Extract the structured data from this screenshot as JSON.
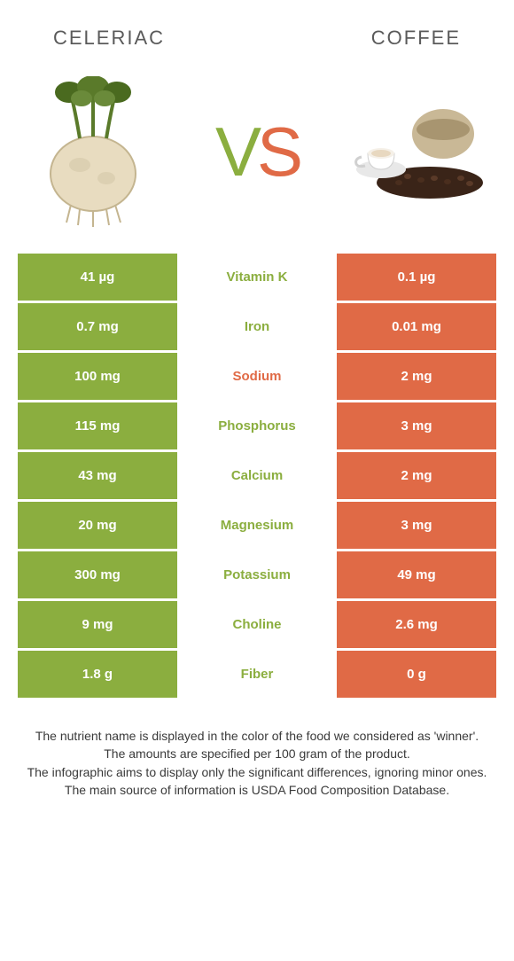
{
  "header": {
    "left_title": "CELERIAC",
    "right_title": "COFFEE"
  },
  "vs": {
    "v": "V",
    "s": "S"
  },
  "colors": {
    "left_bg": "#8bae3f",
    "right_bg": "#e06a46",
    "winner_left_text": "#8bae3f",
    "winner_right_text": "#e06a46",
    "header_text": "#5a5a5a",
    "footer_text": "#3a3a3a",
    "cell_text": "#ffffff",
    "background": "#ffffff"
  },
  "table": {
    "type": "infographic-comparison-table",
    "rows": [
      {
        "left": "41 µg",
        "label": "Vitamin K",
        "right": "0.1 µg",
        "winner": "left"
      },
      {
        "left": "0.7 mg",
        "label": "Iron",
        "right": "0.01 mg",
        "winner": "left"
      },
      {
        "left": "100 mg",
        "label": "Sodium",
        "right": "2 mg",
        "winner": "right"
      },
      {
        "left": "115 mg",
        "label": "Phosphorus",
        "right": "3 mg",
        "winner": "left"
      },
      {
        "left": "43 mg",
        "label": "Calcium",
        "right": "2 mg",
        "winner": "left"
      },
      {
        "left": "20 mg",
        "label": "Magnesium",
        "right": "3 mg",
        "winner": "left"
      },
      {
        "left": "300 mg",
        "label": "Potassium",
        "right": "49 mg",
        "winner": "left"
      },
      {
        "left": "9 mg",
        "label": "Choline",
        "right": "2.6 mg",
        "winner": "left"
      },
      {
        "left": "1.8 g",
        "label": "Fiber",
        "right": "0 g",
        "winner": "left"
      }
    ]
  },
  "footer": {
    "line1": "The nutrient name is displayed in the color of the food we considered as 'winner'.",
    "line2": "The amounts are specified per 100 gram of the product.",
    "line3": "The infographic aims to display only the significant differences, ignoring minor ones.",
    "line4": "The main source of information is USDA Food Composition Database."
  }
}
